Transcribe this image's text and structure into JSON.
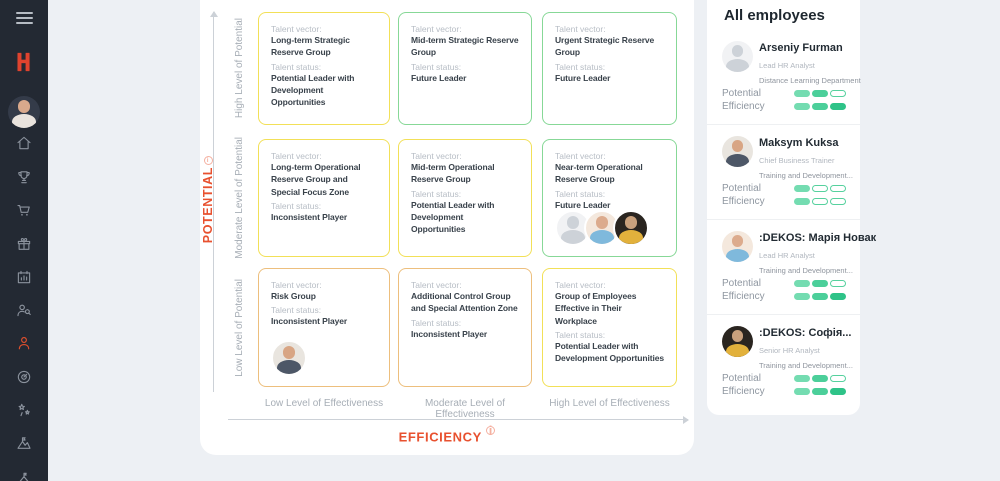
{
  "app": {
    "logo_letter": "H"
  },
  "sidebar": {
    "icons": [
      "menu",
      "logo",
      "user-avatar",
      "home",
      "trophy",
      "cart",
      "gift",
      "calendar-stats",
      "team-search",
      "employees",
      "target",
      "achievements",
      "mountain",
      "flag-triangle"
    ],
    "active_icon": "employees",
    "accent_color": "#dd4f2d",
    "background_color": "#232933"
  },
  "matrix": {
    "vector_label": "Talent vector:",
    "status_label": "Talent status:",
    "y_axis": {
      "title": "POTENTIAL",
      "levels": [
        "High Level of Potential",
        "Moderate Level of Potential",
        "Low Level of Potential"
      ]
    },
    "x_axis": {
      "title": "EFFICIENCY",
      "levels": [
        "Low Level of Effectiveness",
        "Moderate Level of Effectiveness",
        "High Level of Effectiveness"
      ]
    },
    "tone_colors": {
      "yellow": "#f2e058",
      "green": "#87d897",
      "orange": "#edbf7d",
      "axis_accent": "#e8512f"
    },
    "cells": [
      {
        "tone": "yellow",
        "vector": "Long-term Strategic Reserve Group",
        "status": "Potential Leader with Development Opportunities",
        "avatars": []
      },
      {
        "tone": "green",
        "vector": "Mid-term Strategic Reserve Group",
        "status": "Future Leader",
        "avatars": []
      },
      {
        "tone": "green",
        "vector": "Urgent Strategic Reserve Group",
        "status": "Future Leader",
        "avatars": []
      },
      {
        "tone": "yellow",
        "vector": "Long-term Operational Reserve Group and Special Focus Zone",
        "status": "Inconsistent Player",
        "avatars": []
      },
      {
        "tone": "yellow",
        "vector": "Mid-term Operational Reserve Group",
        "status": "Potential Leader with Development Opportunities",
        "avatars": []
      },
      {
        "tone": "green",
        "vector": "Near-term Operational Reserve Group",
        "status": "Future Leader",
        "avatars": [
          "placeholder",
          "woman-blue",
          "woman-dark"
        ]
      },
      {
        "tone": "orange",
        "vector": "Risk Group",
        "status": "Inconsistent Player",
        "avatars": [
          "man"
        ]
      },
      {
        "tone": "orange",
        "vector": "Additional Control Group and Special Attention Zone",
        "status": "Inconsistent Player",
        "avatars": []
      },
      {
        "tone": "yellow",
        "vector": "Group of Employees Effective in Their Workplace",
        "status": "Potential Leader with Development Opportunities",
        "avatars": []
      }
    ]
  },
  "employees_panel": {
    "title": "All employees",
    "metric_labels": {
      "potential": "Potential",
      "efficiency": "Efficiency"
    },
    "employees": [
      {
        "name": "Arseniy Furman",
        "role": "Lead HR Analyst",
        "department": "Distance Learning Department",
        "avatar": "placeholder",
        "potential_pills": [
          "filled-1",
          "filled-2",
          "outline"
        ],
        "efficiency_pills": [
          "filled-1",
          "filled-2",
          "filled-3"
        ]
      },
      {
        "name": "Maksym Kuksa",
        "role": "Chief Business Trainer",
        "department": "Training and Development...",
        "avatar": "man",
        "potential_pills": [
          "filled-1",
          "outline",
          "outline"
        ],
        "efficiency_pills": [
          "filled-1",
          "outline",
          "outline"
        ]
      },
      {
        "name": ":DEKOS: Марія Новак",
        "role": "Lead HR Analyst",
        "department": "Training and Development...",
        "avatar": "woman-blue",
        "potential_pills": [
          "filled-1",
          "filled-2",
          "outline"
        ],
        "efficiency_pills": [
          "filled-1",
          "filled-2",
          "filled-3"
        ]
      },
      {
        "name": ":DEKOS: Софія...",
        "role": "Senior HR Analyst",
        "department": "Training and Development...",
        "avatar": "woman-dark",
        "potential_pills": [
          "filled-1",
          "filled-2",
          "outline"
        ],
        "efficiency_pills": [
          "filled-1",
          "filled-2",
          "filled-3"
        ]
      }
    ]
  }
}
